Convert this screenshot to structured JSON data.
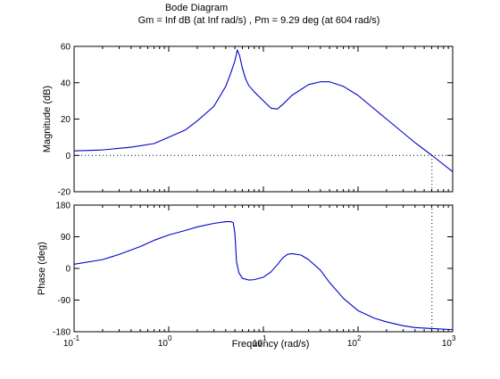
{
  "chart_data": {
    "type": "line",
    "title": "Bode Diagram",
    "subtitle": "Gm = Inf dB (at Inf rad/s) ,  Pm = 9.29 deg (at 604 rad/s)",
    "xlabel": "Frequency  (rad/s)",
    "xscale": "log",
    "xlim": [
      0.1,
      1000
    ],
    "x_ticks": [
      0.1,
      1,
      10,
      100,
      1000
    ],
    "x_tick_labels": [
      {
        "base": "10",
        "exp": "-1"
      },
      {
        "base": "10",
        "exp": "0"
      },
      {
        "base": "10",
        "exp": "1"
      },
      {
        "base": "10",
        "exp": "2"
      },
      {
        "base": "10",
        "exp": "3"
      }
    ],
    "line_color": "#0000c8",
    "grid": false,
    "magnitude": {
      "ylabel": "Magnitude (dB)",
      "ylim": [
        -20,
        60
      ],
      "y_ticks": [
        "-20",
        "0",
        "20",
        "40",
        "60"
      ],
      "reference_line_y": 0,
      "x": [
        0.1,
        0.2,
        0.4,
        0.7,
        1,
        1.5,
        2,
        3,
        4,
        4.5,
        5,
        5.3,
        5.6,
        6,
        6.5,
        7,
        8,
        10,
        12,
        14,
        16,
        20,
        30,
        40,
        50,
        70,
        100,
        200,
        400,
        604,
        1000
      ],
      "y": [
        2.5,
        3,
        4.5,
        6.5,
        10,
        14,
        19,
        27,
        38,
        45,
        52,
        58,
        55,
        48,
        42,
        38.5,
        35,
        30,
        26,
        25.5,
        28,
        33,
        39,
        40.5,
        40.5,
        38,
        33,
        20,
        7,
        0,
        -9
      ]
    },
    "phase": {
      "ylabel": "Phase (deg)",
      "ylim": [
        -180,
        180
      ],
      "y_ticks": [
        "-180",
        "-90",
        "0",
        "90",
        "180"
      ],
      "reference_line_y": -180,
      "x": [
        0.1,
        0.2,
        0.3,
        0.5,
        0.7,
        1,
        1.5,
        2,
        3,
        4,
        4.5,
        4.8,
        5,
        5.2,
        5.5,
        6,
        7,
        8,
        10,
        12,
        14,
        16,
        18,
        20,
        25,
        30,
        40,
        50,
        70,
        100,
        150,
        200,
        300,
        400,
        604,
        1000
      ],
      "y": [
        12,
        25,
        40,
        62,
        80,
        95,
        108,
        118,
        128,
        133,
        133,
        130,
        100,
        20,
        -12,
        -28,
        -33,
        -32,
        -25,
        -10,
        10,
        30,
        40,
        42,
        38,
        25,
        -5,
        -40,
        -85,
        -120,
        -142,
        -152,
        -163,
        -168,
        -171,
        -174
      ]
    },
    "margin_marker": {
      "frequency": 604,
      "label": "Pm"
    }
  }
}
